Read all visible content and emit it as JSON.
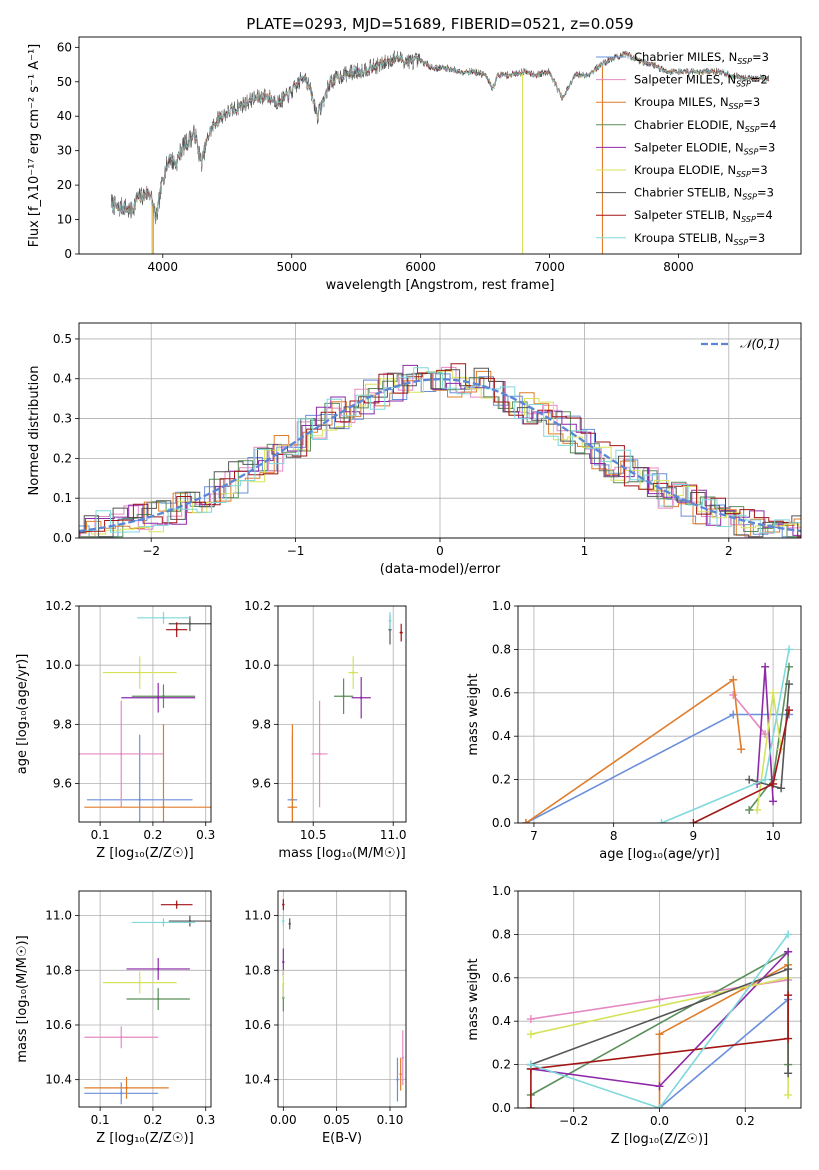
{
  "figure": {
    "title": "PLATE=0293, MJD=51689, FIBERID=0521, z=0.059"
  },
  "colors": {
    "Chabrier MILES": "#6a8fdb",
    "Salpeter MILES": "#e589c2",
    "Kroupa MILES": "#e07d2a",
    "Chabrier ELODIE": "#5a8f5a",
    "Salpeter ELODIE": "#8e2aa8",
    "Kroupa ELODIE": "#d6e35a",
    "Chabrier STELIB": "#555555",
    "Salpeter STELIB": "#a31515",
    "Kroupa STELIB": "#7fd8dc"
  },
  "chart_data": [
    {
      "id": "spectrum",
      "type": "line",
      "xlabel": "wavelength [Angstrom, rest frame]",
      "ylabel": "Flux [f_λ10⁻¹⁷ erg cm⁻² s⁻¹ A⁻¹]",
      "xlim": [
        3350,
        8950
      ],
      "ylim": [
        0,
        63
      ],
      "xticks": [
        4000,
        5000,
        6000,
        7000,
        8000
      ],
      "yticks": [
        0,
        10,
        20,
        30,
        40,
        50,
        60
      ],
      "legend_loc": "upper right",
      "grid": false,
      "x": [
        3600,
        3650,
        3700,
        3750,
        3800,
        3850,
        3900,
        3950,
        4000,
        4050,
        4100,
        4150,
        4200,
        4250,
        4300,
        4350,
        4400,
        4450,
        4500,
        4600,
        4700,
        4800,
        4900,
        5000,
        5100,
        5150,
        5200,
        5300,
        5400,
        5500,
        5600,
        5700,
        5800,
        5900,
        6000,
        6100,
        6200,
        6300,
        6400,
        6500,
        6560,
        6600,
        6700,
        6800,
        6900,
        7000,
        7100,
        7200,
        7300,
        7400,
        7500,
        7600,
        7700,
        7800,
        7900,
        8000,
        8100,
        8200,
        8300,
        8400,
        8500,
        8600,
        8700
      ],
      "flux": [
        15,
        13,
        14,
        12,
        16,
        17,
        18,
        10,
        22,
        28,
        26,
        31,
        33,
        35,
        26,
        34,
        38,
        40,
        41,
        43,
        45,
        46,
        44,
        47,
        52,
        47,
        40,
        50,
        52,
        53,
        54,
        55,
        57,
        56,
        56,
        54,
        54,
        53,
        53,
        52,
        48,
        52,
        52,
        53,
        52,
        53,
        45,
        52,
        52,
        55,
        57,
        58,
        56,
        55,
        53,
        53,
        53,
        53,
        53,
        52,
        51,
        51,
        51
      ],
      "series": [
        {
          "name": "Chabrier MILES",
          "nssp": 3
        },
        {
          "name": "Salpeter MILES",
          "nssp": 2
        },
        {
          "name": "Kroupa MILES",
          "nssp": 3
        },
        {
          "name": "Chabrier ELODIE",
          "nssp": 4
        },
        {
          "name": "Salpeter ELODIE",
          "nssp": 3
        },
        {
          "name": "Kroupa ELODIE",
          "nssp": 3
        },
        {
          "name": "Chabrier STELIB",
          "nssp": 3
        },
        {
          "name": "Salpeter STELIB",
          "nssp": 4
        },
        {
          "name": "Kroupa STELIB",
          "nssp": 3
        }
      ]
    },
    {
      "id": "residuals",
      "type": "histogram",
      "xlabel": "(data-model)/error",
      "ylabel": "Normed distribution",
      "xlim": [
        -2.5,
        2.5
      ],
      "ylim": [
        0,
        0.54
      ],
      "xticks": [
        -2,
        -1,
        0,
        1,
        2
      ],
      "yticks": [
        0.0,
        0.1,
        0.2,
        0.3,
        0.4,
        0.5
      ],
      "grid": true,
      "legend_loc": "upper right",
      "reference": {
        "name": "𝒩(0,1)"
      }
    },
    {
      "id": "age_vs_Z",
      "type": "errorbar",
      "xlabel": "Z [log₁₀(Z/Z☉)]",
      "ylabel": "age [log₁₀(age/yr)]",
      "xlim": [
        0.06,
        0.31
      ],
      "ylim": [
        9.47,
        10.2
      ],
      "xticks": [
        0.1,
        0.2,
        0.3
      ],
      "yticks": [
        9.6,
        9.8,
        10.0,
        10.2
      ],
      "grid": true,
      "points": [
        {
          "series": "Chabrier MILES",
          "x": 0.175,
          "xerr": 0.1,
          "y": 9.545,
          "yerr": 0.22
        },
        {
          "series": "Salpeter MILES",
          "x": 0.14,
          "xerr": 0.08,
          "y": 9.7,
          "yerr": 0.18
        },
        {
          "series": "Kroupa MILES",
          "x": 0.22,
          "xerr": 0.15,
          "y": 9.52,
          "yerr": 0.28
        },
        {
          "series": "Chabrier ELODIE",
          "x": 0.22,
          "xerr": 0.06,
          "y": 9.895,
          "yerr": 0.04
        },
        {
          "series": "Salpeter ELODIE",
          "x": 0.21,
          "xerr": 0.07,
          "y": 9.89,
          "yerr": 0.05
        },
        {
          "series": "Kroupa ELODIE",
          "x": 0.175,
          "xerr": 0.07,
          "y": 9.975,
          "yerr": 0.055
        },
        {
          "series": "Chabrier STELIB",
          "x": 0.27,
          "xerr": 0.04,
          "y": 10.14,
          "yerr": 0.025
        },
        {
          "series": "Salpeter STELIB",
          "x": 0.245,
          "xerr": 0.02,
          "y": 10.12,
          "yerr": 0.025
        },
        {
          "series": "Kroupa STELIB",
          "x": 0.22,
          "xerr": 0.05,
          "y": 10.16,
          "yerr": 0.02
        }
      ]
    },
    {
      "id": "age_vs_mass",
      "type": "errorbar",
      "xlabel": "mass [log₁₀(M/M☉)]",
      "xlim": [
        10.28,
        11.08
      ],
      "ylim": [
        9.47,
        10.2
      ],
      "xticks": [
        10.5,
        11.0
      ],
      "yticks": [
        9.6,
        9.8,
        10.0,
        10.2
      ],
      "grid": true,
      "points": [
        {
          "series": "Chabrier MILES",
          "x": 10.37,
          "xerr": 0.03,
          "y": 9.545,
          "yerr": 0.22
        },
        {
          "series": "Salpeter MILES",
          "x": 10.54,
          "xerr": 0.05,
          "y": 9.7,
          "yerr": 0.18
        },
        {
          "series": "Kroupa MILES",
          "x": 10.37,
          "xerr": 0.03,
          "y": 9.52,
          "yerr": 0.28
        },
        {
          "series": "Chabrier ELODIE",
          "x": 10.69,
          "xerr": 0.06,
          "y": 9.895,
          "yerr": 0.06
        },
        {
          "series": "Salpeter ELODIE",
          "x": 10.8,
          "xerr": 0.06,
          "y": 9.89,
          "yerr": 0.07
        },
        {
          "series": "Kroupa ELODIE",
          "x": 10.75,
          "xerr": 0.03,
          "y": 9.975,
          "yerr": 0.055
        },
        {
          "series": "Chabrier STELIB",
          "x": 10.98,
          "xerr": 0.01,
          "y": 10.12,
          "yerr": 0.05
        },
        {
          "series": "Salpeter STELIB",
          "x": 11.05,
          "xerr": 0.01,
          "y": 10.11,
          "yerr": 0.03
        },
        {
          "series": "Kroupa STELIB",
          "x": 10.98,
          "xerr": 0.01,
          "y": 10.15,
          "yerr": 0.03
        }
      ]
    },
    {
      "id": "mass_weight_vs_age",
      "type": "line",
      "xlabel": "age [log₁₀(age/yr)]",
      "ylabel": "mass weight",
      "xlim": [
        6.8,
        10.35
      ],
      "ylim": [
        0,
        1.0
      ],
      "xticks": [
        7,
        8,
        9,
        10
      ],
      "yticks": [
        0.0,
        0.2,
        0.4,
        0.6,
        0.8,
        1.0
      ],
      "grid": true,
      "series": [
        {
          "series": "Chabrier MILES",
          "x": [
            6.9,
            9.5,
            10.2
          ],
          "y": [
            0.0,
            0.5,
            0.5
          ]
        },
        {
          "series": "Salpeter MILES",
          "x": [
            9.5,
            9.9
          ],
          "y": [
            0.59,
            0.41
          ]
        },
        {
          "series": "Kroupa MILES",
          "x": [
            6.9,
            9.5,
            9.6
          ],
          "y": [
            0.0,
            0.66,
            0.34
          ]
        },
        {
          "series": "Chabrier ELODIE",
          "x": [
            9.7,
            10.0,
            10.2
          ],
          "y": [
            0.06,
            0.2,
            0.72
          ]
        },
        {
          "series": "Salpeter ELODIE",
          "x": [
            9.8,
            9.9,
            10.0
          ],
          "y": [
            0.18,
            0.72,
            0.1
          ]
        },
        {
          "series": "Kroupa ELODIE",
          "x": [
            9.8,
            10.0,
            10.1
          ],
          "y": [
            0.06,
            0.6,
            0.34
          ]
        },
        {
          "series": "Chabrier STELIB",
          "x": [
            9.7,
            10.1,
            10.2
          ],
          "y": [
            0.2,
            0.16,
            0.64
          ]
        },
        {
          "series": "Salpeter STELIB",
          "x": [
            9.0,
            10.0,
            10.2
          ],
          "y": [
            0.0,
            0.18,
            0.52
          ]
        },
        {
          "series": "Kroupa STELIB",
          "x": [
            8.6,
            9.9,
            10.2
          ],
          "y": [
            0.0,
            0.2,
            0.8
          ]
        }
      ]
    },
    {
      "id": "mass_vs_Z",
      "type": "errorbar",
      "xlabel": "Z [log₁₀(Z/Z☉)]",
      "ylabel": "mass [log₁₀(M/M☉)]",
      "xlim": [
        0.06,
        0.31
      ],
      "ylim": [
        10.3,
        11.09
      ],
      "xticks": [
        0.1,
        0.2,
        0.3
      ],
      "yticks": [
        10.4,
        10.6,
        10.8,
        11.0
      ],
      "grid": true,
      "points": [
        {
          "series": "Chabrier MILES",
          "x": 0.14,
          "xerr": 0.07,
          "y": 10.35,
          "yerr": 0.04
        },
        {
          "series": "Salpeter MILES",
          "x": 0.14,
          "xerr": 0.07,
          "y": 10.555,
          "yerr": 0.04
        },
        {
          "series": "Kroupa MILES",
          "x": 0.15,
          "xerr": 0.08,
          "y": 10.37,
          "yerr": 0.04
        },
        {
          "series": "Chabrier ELODIE",
          "x": 0.21,
          "xerr": 0.06,
          "y": 10.695,
          "yerr": 0.04
        },
        {
          "series": "Salpeter ELODIE",
          "x": 0.21,
          "xerr": 0.06,
          "y": 10.805,
          "yerr": 0.04
        },
        {
          "series": "Kroupa ELODIE",
          "x": 0.175,
          "xerr": 0.07,
          "y": 10.755,
          "yerr": 0.04
        },
        {
          "series": "Chabrier STELIB",
          "x": 0.27,
          "xerr": 0.04,
          "y": 10.98,
          "yerr": 0.02
        },
        {
          "series": "Salpeter STELIB",
          "x": 0.245,
          "xerr": 0.03,
          "y": 11.04,
          "yerr": 0.015
        },
        {
          "series": "Kroupa STELIB",
          "x": 0.22,
          "xerr": 0.06,
          "y": 10.975,
          "yerr": 0.015
        }
      ]
    },
    {
      "id": "mass_vs_ebv",
      "type": "errorbar",
      "xlabel": "E(B-V)",
      "xlim": [
        -0.005,
        0.115
      ],
      "ylim": [
        10.3,
        11.09
      ],
      "xticks": [
        0.0,
        0.05,
        0.1
      ],
      "yticks": [
        10.4,
        10.6,
        10.8,
        11.0
      ],
      "grid": true,
      "points": [
        {
          "series": "Chabrier MILES",
          "x": 0.107,
          "y": 10.4,
          "yerr": 0.08
        },
        {
          "series": "Salpeter MILES",
          "x": 0.112,
          "y": 10.48,
          "yerr": 0.1
        },
        {
          "series": "Kroupa MILES",
          "x": 0.11,
          "y": 10.42,
          "yerr": 0.06
        },
        {
          "series": "Chabrier ELODIE",
          "x": 0.0,
          "y": 10.7,
          "yerr": 0.05
        },
        {
          "series": "Salpeter ELODIE",
          "x": 0.0,
          "y": 10.83,
          "yerr": 0.05
        },
        {
          "series": "Kroupa ELODIE",
          "x": 0.0,
          "y": 10.75,
          "yerr": 0.05
        },
        {
          "series": "Chabrier STELIB",
          "x": 0.006,
          "y": 10.97,
          "yerr": 0.02
        },
        {
          "series": "Salpeter STELIB",
          "x": 0.0,
          "y": 11.04,
          "yerr": 0.02
        },
        {
          "series": "Kroupa STELIB",
          "x": 0.0,
          "y": 10.98,
          "yerr": 0.02
        }
      ]
    },
    {
      "id": "mass_weight_vs_Z",
      "type": "line",
      "xlabel": "Z [log₁₀(Z/Z☉)]",
      "ylabel": "mass weight",
      "xlim": [
        -0.33,
        0.33
      ],
      "ylim": [
        0,
        1.0
      ],
      "xticks": [
        -0.2,
        0.0,
        0.2
      ],
      "yticks": [
        0.0,
        0.2,
        0.4,
        0.6,
        0.8,
        1.0
      ],
      "grid": true,
      "series": [
        {
          "series": "Chabrier MILES",
          "x": [
            0.0,
            0.3
          ],
          "y": [
            0.0,
            0.5
          ]
        },
        {
          "series": "Salpeter MILES",
          "x": [
            -0.3,
            0.0,
            0.3
          ],
          "y": [
            0.41,
            0.5,
            0.59
          ]
        },
        {
          "series": "Kroupa MILES",
          "x": [
            0.0,
            0.0,
            0.3
          ],
          "y": [
            0.0,
            0.34,
            0.66
          ]
        },
        {
          "series": "Chabrier ELODIE",
          "x": [
            -0.3,
            0.3,
            0.3
          ],
          "y": [
            0.06,
            0.72,
            0.2
          ]
        },
        {
          "series": "Salpeter ELODIE",
          "x": [
            -0.3,
            0.0,
            0.3
          ],
          "y": [
            0.18,
            0.1,
            0.72
          ]
        },
        {
          "series": "Kroupa ELODIE",
          "x": [
            -0.3,
            0.3,
            0.3
          ],
          "y": [
            0.34,
            0.6,
            0.06
          ]
        },
        {
          "series": "Chabrier STELIB",
          "x": [
            -0.3,
            0.3,
            0.3
          ],
          "y": [
            0.2,
            0.64,
            0.16
          ]
        },
        {
          "series": "Salpeter STELIB",
          "x": [
            -0.3,
            -0.3,
            0.3,
            0.3
          ],
          "y": [
            0.0,
            0.18,
            0.32,
            0.52
          ]
        },
        {
          "series": "Kroupa STELIB",
          "x": [
            -0.3,
            0.0,
            0.3
          ],
          "y": [
            0.2,
            0.0,
            0.8
          ]
        }
      ]
    }
  ]
}
